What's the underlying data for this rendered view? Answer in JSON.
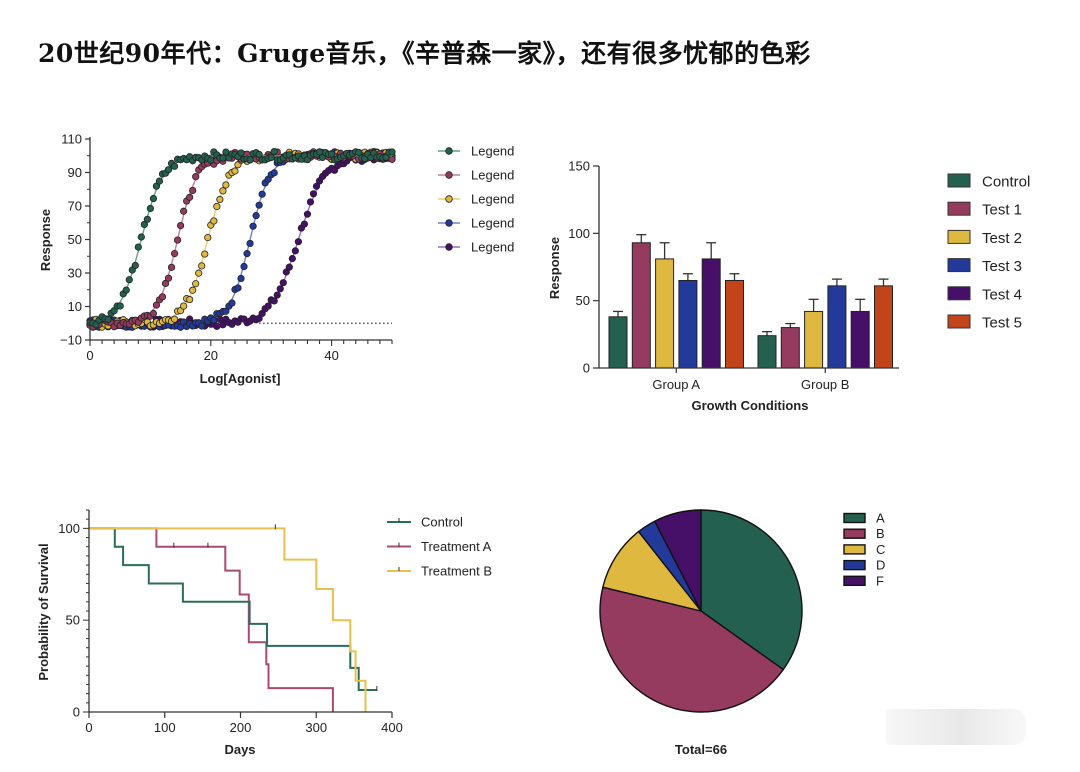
{
  "page": {
    "title": "20世纪90年代：Gruge音乐，《辛普森一家》，还有很多忧郁的色彩"
  },
  "palette": {
    "green": "#24604f",
    "maroon": "#943b5f",
    "yellow": "#dfb93f",
    "blue": "#243a9a",
    "purple": "#460f68",
    "orange": "#c1441a"
  },
  "chart_data": [
    {
      "id": "dose-response",
      "type": "scatter",
      "title": "",
      "xlabel": "Log[Agonist]",
      "ylabel": "Response",
      "xlim": [
        0,
        50
      ],
      "ylim": [
        -10,
        110
      ],
      "x_ticks": [
        "0",
        "20",
        "40"
      ],
      "x_tick_values": [
        0,
        20,
        40
      ],
      "y_ticks": [
        "110",
        "90",
        "70",
        "50",
        "30",
        "10",
        "−10"
      ],
      "y_tick_values": [
        110,
        90,
        70,
        50,
        30,
        10,
        -10
      ],
      "baseline": {
        "y": 0,
        "x_from": 28,
        "x_to": 50,
        "style": "dotted"
      },
      "legend_position": "right",
      "curve_model": "sigmoid: bottom 0, top 100, x from 0 to 50 step 0.5",
      "series": [
        {
          "name": "Legend",
          "color": "#24604f",
          "line_color": "#5fa08a",
          "ec50": 8.5,
          "hill": 0.55
        },
        {
          "name": "Legend",
          "color": "#943b5f",
          "line_color": "#c47f98",
          "ec50": 14.5,
          "hill": 0.6
        },
        {
          "name": "Legend",
          "color": "#dfb93f",
          "line_color": "#eacf74",
          "ec50": 19.5,
          "hill": 0.55
        },
        {
          "name": "Legend",
          "color": "#243a9a",
          "line_color": "#7180c8",
          "ec50": 26.5,
          "hill": 0.6
        },
        {
          "name": "Legend",
          "color": "#460f68",
          "line_color": "#9a6fbb",
          "ec50": 34.5,
          "hill": 0.45
        }
      ]
    },
    {
      "id": "grouped-bar",
      "type": "bar",
      "xlabel": "Growth Conditions",
      "ylabel": "Response",
      "ylim": [
        0,
        150
      ],
      "y_ticks": [
        "150",
        "100",
        "50",
        "0"
      ],
      "y_tick_values": [
        150,
        100,
        50,
        0
      ],
      "categories": [
        "Group A",
        "Group B"
      ],
      "legend_position": "right",
      "series": [
        {
          "name": "Control",
          "color": "#24604f",
          "values": [
            38,
            24
          ],
          "errors": [
            4,
            3
          ]
        },
        {
          "name": "Test 1",
          "color": "#943b5f",
          "values": [
            93,
            30
          ],
          "errors": [
            6,
            3
          ]
        },
        {
          "name": "Test 2",
          "color": "#dfb93f",
          "values": [
            81,
            42
          ],
          "errors": [
            12,
            9
          ]
        },
        {
          "name": "Test 3",
          "color": "#243a9a",
          "values": [
            65,
            61
          ],
          "errors": [
            5,
            5
          ]
        },
        {
          "name": "Test 4",
          "color": "#460f68",
          "values": [
            81,
            42
          ],
          "errors": [
            12,
            9
          ]
        },
        {
          "name": "Test 5",
          "color": "#c1441a",
          "values": [
            65,
            61
          ],
          "errors": [
            5,
            5
          ]
        }
      ]
    },
    {
      "id": "survival",
      "type": "line",
      "subtype": "kaplan-meier step",
      "xlabel": "Days",
      "ylabel": "Probability of Survival",
      "xlim": [
        0,
        400
      ],
      "ylim": [
        0,
        110
      ],
      "x_ticks": [
        "0",
        "100",
        "200",
        "300",
        "400"
      ],
      "x_tick_values": [
        0,
        100,
        200,
        300,
        400
      ],
      "y_ticks": [
        "100",
        "50",
        "0"
      ],
      "y_tick_values": [
        100,
        50,
        0
      ],
      "legend_position": "top-right",
      "series": [
        {
          "name": "Control",
          "color": "#2a6e5a",
          "steps": [
            [
              0,
              100
            ],
            [
              34,
              90
            ],
            [
              45,
              80
            ],
            [
              79,
              70
            ],
            [
              124,
              60
            ],
            [
              212,
              48
            ],
            [
              235,
              36
            ],
            [
              345,
              24
            ],
            [
              356,
              12
            ],
            [
              380,
              12
            ]
          ],
          "censor": [
            [
              380,
              12
            ]
          ]
        },
        {
          "name": "Treatment A",
          "color": "#a94a73",
          "steps": [
            [
              0,
              100
            ],
            [
              89,
              90
            ],
            [
              180,
              77
            ],
            [
              199,
              64
            ],
            [
              211,
              38
            ],
            [
              234,
              26
            ],
            [
              237,
              13
            ],
            [
              322,
              0
            ]
          ],
          "censor": [
            [
              112,
              90
            ],
            [
              157,
              90
            ]
          ]
        },
        {
          "name": "Treatment B",
          "color": "#e6c14d",
          "steps": [
            [
              0,
              100
            ],
            [
              258,
              83
            ],
            [
              300,
              67
            ],
            [
              322,
              50
            ],
            [
              345,
              33
            ],
            [
              352,
              17
            ],
            [
              365,
              0
            ]
          ],
          "censor": [
            [
              246,
              100
            ]
          ]
        }
      ]
    },
    {
      "id": "pie",
      "type": "pie",
      "footer": "Total=66",
      "legend_position": "top-right",
      "slices": [
        {
          "label": "A",
          "value": 23,
          "color": "#24604f"
        },
        {
          "label": "B",
          "value": 29,
          "color": "#943b5f"
        },
        {
          "label": "C",
          "value": 7,
          "color": "#dfb93f"
        },
        {
          "label": "D",
          "value": 2,
          "color": "#243a9a"
        },
        {
          "label": "F",
          "value": 5,
          "color": "#460f68"
        }
      ]
    }
  ]
}
